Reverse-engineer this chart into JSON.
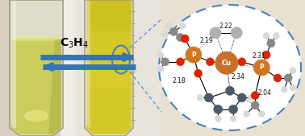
{
  "fig_width": 3.78,
  "fig_height": 1.69,
  "dpi": 100,
  "arrow_color": "#3575b5",
  "arrow_label": "C$_3$H$_4$",
  "circle_color": "#4a7fc0",
  "bond_distances": {
    "d1": "2.19",
    "d2": "2.22",
    "d3": "2.31",
    "d4": "2.18",
    "d5": "2.34",
    "d6": "2.04"
  }
}
